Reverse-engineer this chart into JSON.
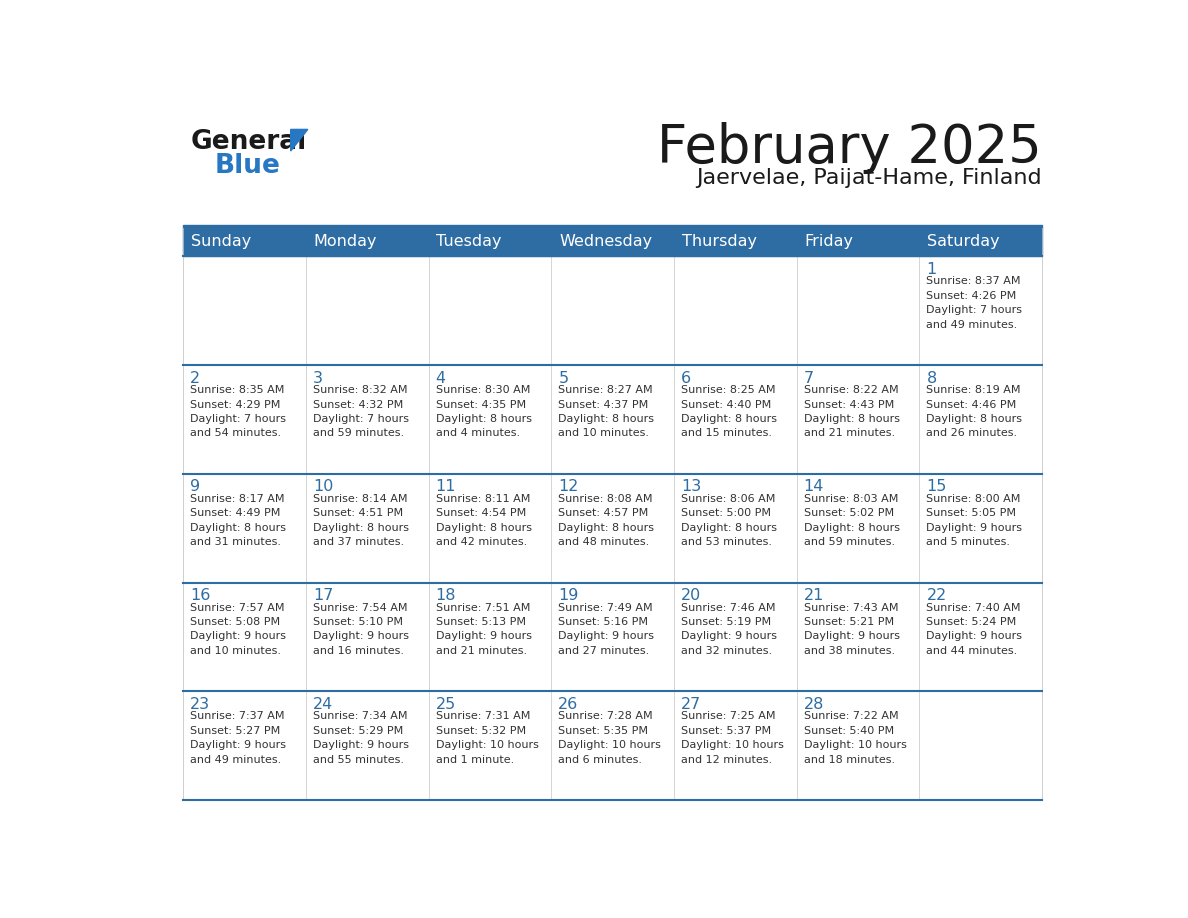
{
  "title": "February 2025",
  "subtitle": "Jaervelae, Paijat-Hame, Finland",
  "header_bg": "#2E6DA4",
  "header_text": "#FFFFFF",
  "day_headers": [
    "Sunday",
    "Monday",
    "Tuesday",
    "Wednesday",
    "Thursday",
    "Friday",
    "Saturday"
  ],
  "title_color": "#1a1a1a",
  "subtitle_color": "#1a1a1a",
  "line_color": "#2E6DA4",
  "day_num_color": "#2E6DA4",
  "text_color": "#333333",
  "logo_general_color": "#1a1a1a",
  "logo_blue_color": "#2777C2",
  "logo_triangle_color": "#2777C2",
  "weeks": [
    [
      {
        "day": null,
        "info": null
      },
      {
        "day": null,
        "info": null
      },
      {
        "day": null,
        "info": null
      },
      {
        "day": null,
        "info": null
      },
      {
        "day": null,
        "info": null
      },
      {
        "day": null,
        "info": null
      },
      {
        "day": 1,
        "info": "Sunrise: 8:37 AM\nSunset: 4:26 PM\nDaylight: 7 hours\nand 49 minutes."
      }
    ],
    [
      {
        "day": 2,
        "info": "Sunrise: 8:35 AM\nSunset: 4:29 PM\nDaylight: 7 hours\nand 54 minutes."
      },
      {
        "day": 3,
        "info": "Sunrise: 8:32 AM\nSunset: 4:32 PM\nDaylight: 7 hours\nand 59 minutes."
      },
      {
        "day": 4,
        "info": "Sunrise: 8:30 AM\nSunset: 4:35 PM\nDaylight: 8 hours\nand 4 minutes."
      },
      {
        "day": 5,
        "info": "Sunrise: 8:27 AM\nSunset: 4:37 PM\nDaylight: 8 hours\nand 10 minutes."
      },
      {
        "day": 6,
        "info": "Sunrise: 8:25 AM\nSunset: 4:40 PM\nDaylight: 8 hours\nand 15 minutes."
      },
      {
        "day": 7,
        "info": "Sunrise: 8:22 AM\nSunset: 4:43 PM\nDaylight: 8 hours\nand 21 minutes."
      },
      {
        "day": 8,
        "info": "Sunrise: 8:19 AM\nSunset: 4:46 PM\nDaylight: 8 hours\nand 26 minutes."
      }
    ],
    [
      {
        "day": 9,
        "info": "Sunrise: 8:17 AM\nSunset: 4:49 PM\nDaylight: 8 hours\nand 31 minutes."
      },
      {
        "day": 10,
        "info": "Sunrise: 8:14 AM\nSunset: 4:51 PM\nDaylight: 8 hours\nand 37 minutes."
      },
      {
        "day": 11,
        "info": "Sunrise: 8:11 AM\nSunset: 4:54 PM\nDaylight: 8 hours\nand 42 minutes."
      },
      {
        "day": 12,
        "info": "Sunrise: 8:08 AM\nSunset: 4:57 PM\nDaylight: 8 hours\nand 48 minutes."
      },
      {
        "day": 13,
        "info": "Sunrise: 8:06 AM\nSunset: 5:00 PM\nDaylight: 8 hours\nand 53 minutes."
      },
      {
        "day": 14,
        "info": "Sunrise: 8:03 AM\nSunset: 5:02 PM\nDaylight: 8 hours\nand 59 minutes."
      },
      {
        "day": 15,
        "info": "Sunrise: 8:00 AM\nSunset: 5:05 PM\nDaylight: 9 hours\nand 5 minutes."
      }
    ],
    [
      {
        "day": 16,
        "info": "Sunrise: 7:57 AM\nSunset: 5:08 PM\nDaylight: 9 hours\nand 10 minutes."
      },
      {
        "day": 17,
        "info": "Sunrise: 7:54 AM\nSunset: 5:10 PM\nDaylight: 9 hours\nand 16 minutes."
      },
      {
        "day": 18,
        "info": "Sunrise: 7:51 AM\nSunset: 5:13 PM\nDaylight: 9 hours\nand 21 minutes."
      },
      {
        "day": 19,
        "info": "Sunrise: 7:49 AM\nSunset: 5:16 PM\nDaylight: 9 hours\nand 27 minutes."
      },
      {
        "day": 20,
        "info": "Sunrise: 7:46 AM\nSunset: 5:19 PM\nDaylight: 9 hours\nand 32 minutes."
      },
      {
        "day": 21,
        "info": "Sunrise: 7:43 AM\nSunset: 5:21 PM\nDaylight: 9 hours\nand 38 minutes."
      },
      {
        "day": 22,
        "info": "Sunrise: 7:40 AM\nSunset: 5:24 PM\nDaylight: 9 hours\nand 44 minutes."
      }
    ],
    [
      {
        "day": 23,
        "info": "Sunrise: 7:37 AM\nSunset: 5:27 PM\nDaylight: 9 hours\nand 49 minutes."
      },
      {
        "day": 24,
        "info": "Sunrise: 7:34 AM\nSunset: 5:29 PM\nDaylight: 9 hours\nand 55 minutes."
      },
      {
        "day": 25,
        "info": "Sunrise: 7:31 AM\nSunset: 5:32 PM\nDaylight: 10 hours\nand 1 minute."
      },
      {
        "day": 26,
        "info": "Sunrise: 7:28 AM\nSunset: 5:35 PM\nDaylight: 10 hours\nand 6 minutes."
      },
      {
        "day": 27,
        "info": "Sunrise: 7:25 AM\nSunset: 5:37 PM\nDaylight: 10 hours\nand 12 minutes."
      },
      {
        "day": 28,
        "info": "Sunrise: 7:22 AM\nSunset: 5:40 PM\nDaylight: 10 hours\nand 18 minutes."
      },
      {
        "day": null,
        "info": null
      }
    ]
  ]
}
